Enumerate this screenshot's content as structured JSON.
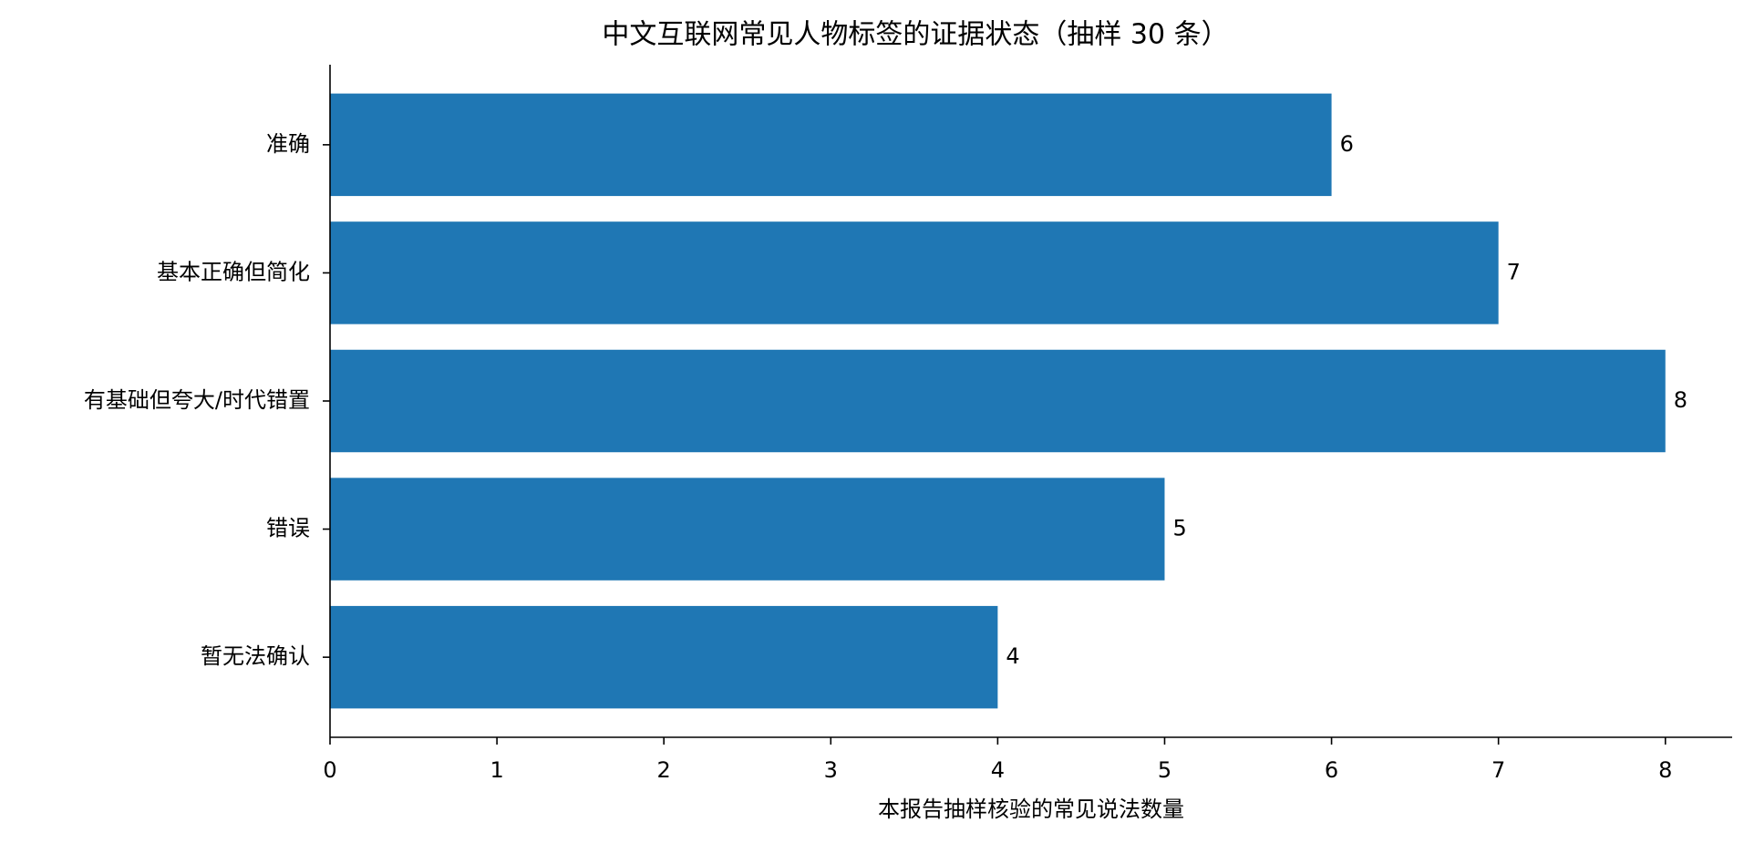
{
  "chart_data": {
    "type": "hbar",
    "title": "中文互联网常见人物标签的证据状态（抽样 30 条）",
    "x_label": "本报告抽样核验的常见说法数量",
    "categories": [
      "准确",
      "基本正确但简化",
      "有基础但夸大/时代错置",
      "错误",
      "暂无法确认"
    ],
    "values": [
      6,
      7,
      8,
      5,
      4
    ],
    "color": "#1f77b4",
    "xlim": [
      0,
      8.4
    ],
    "xticks": [
      0,
      1,
      2,
      3,
      4,
      5,
      6,
      7,
      8
    ],
    "grid": false
  }
}
